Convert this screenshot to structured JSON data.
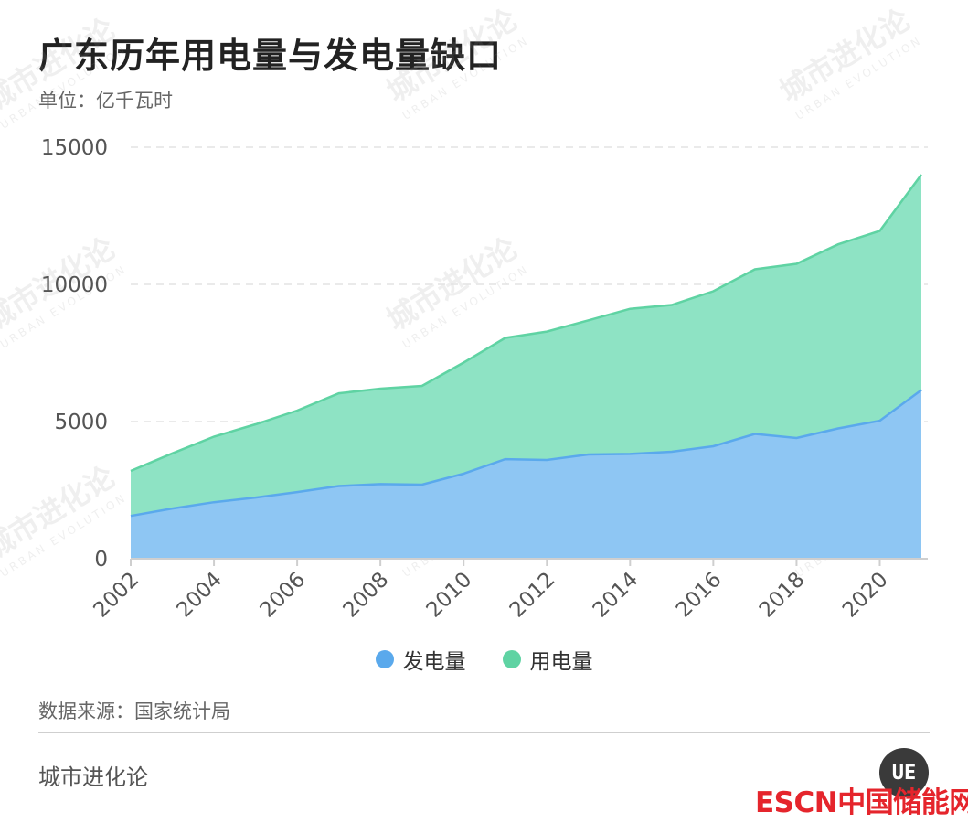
{
  "header": {
    "title": "广东历年用电量与发电量缺口",
    "unit": "单位：亿千瓦时"
  },
  "footer": {
    "source": "数据来源：国家统计局",
    "brand": "城市进化论",
    "badge": "UE",
    "escn_logo": "ESCN中国储能网"
  },
  "watermark": {
    "cn": "城市进化论",
    "en": "URBAN EVOLUTION"
  },
  "colors": {
    "generation": "#5aa9ec",
    "consumption": "#5fd3a3",
    "generation_fill": "#8ec6f3",
    "consumption_fill": "#8ee3c4"
  },
  "chart_data": {
    "type": "area",
    "title": "广东历年用电量与发电量缺口",
    "ylabel": "单位：亿千瓦时",
    "xlabel": "",
    "x": [
      2002,
      2003,
      2004,
      2005,
      2006,
      2007,
      2008,
      2009,
      2010,
      2011,
      2012,
      2013,
      2014,
      2015,
      2016,
      2017,
      2018,
      2019,
      2020,
      2021
    ],
    "x_tick_labels": [
      "2002",
      "2004",
      "2006",
      "2008",
      "2010",
      "2012",
      "2014",
      "2016",
      "2018",
      "2020"
    ],
    "y_tick_labels": [
      "0",
      "5000",
      "10000",
      "15000"
    ],
    "ylim": [
      0,
      15000
    ],
    "grid": "horizontal dashed",
    "legend_position": "bottom-center",
    "series": [
      {
        "name": "发电量",
        "values": [
          1560,
          1830,
          2060,
          2230,
          2430,
          2650,
          2720,
          2700,
          3100,
          3630,
          3600,
          3800,
          3820,
          3900,
          4100,
          4550,
          4400,
          4750,
          5030,
          6150
        ]
      },
      {
        "name": "用电量",
        "values": [
          3200,
          3840,
          4450,
          4900,
          5400,
          6030,
          6200,
          6300,
          7150,
          8050,
          8280,
          8690,
          9110,
          9250,
          9750,
          10550,
          10750,
          11460,
          11950,
          14000
        ]
      }
    ]
  }
}
